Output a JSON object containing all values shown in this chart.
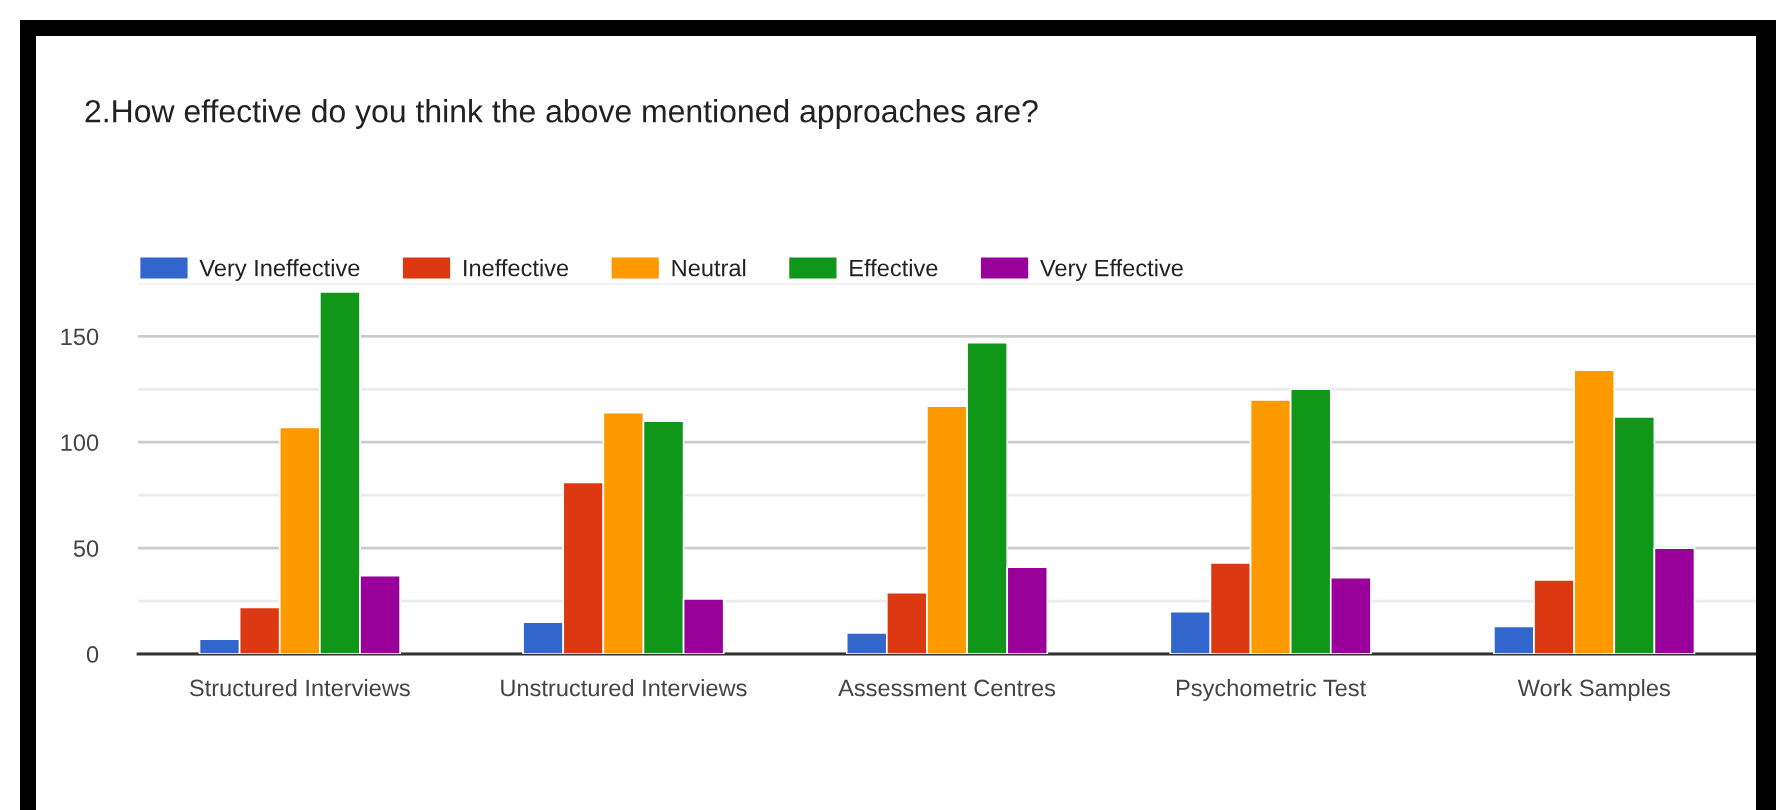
{
  "chart_data": {
    "type": "bar",
    "title": "2.How effective do you think the above mentioned approaches are?",
    "categories": [
      "Structured Interviews",
      "Unstructured Interviews",
      "Assessment Centres",
      "Psychometric Test",
      "Work Samples"
    ],
    "series": [
      {
        "name": "Very Ineffective",
        "color": "#3366cc",
        "values": [
          7,
          15,
          10,
          20,
          13
        ]
      },
      {
        "name": "Ineffective",
        "color": "#dc3912",
        "values": [
          22,
          81,
          29,
          43,
          35
        ]
      },
      {
        "name": "Neutral",
        "color": "#ff9900",
        "values": [
          107,
          114,
          117,
          120,
          134
        ]
      },
      {
        "name": "Effective",
        "color": "#109618",
        "values": [
          171,
          110,
          147,
          125,
          112
        ]
      },
      {
        "name": "Very Effective",
        "color": "#990099",
        "values": [
          37,
          26,
          41,
          36,
          50
        ]
      }
    ],
    "ylim": [
      0,
      175
    ],
    "yticks": [
      0,
      {
        "value": 25,
        "label": null
      },
      50,
      {
        "value": 75,
        "label": null
      },
      100,
      {
        "value": 125,
        "label": null
      },
      150,
      {
        "value": 175,
        "label": null
      }
    ],
    "grid": "y",
    "legend": "top left"
  }
}
